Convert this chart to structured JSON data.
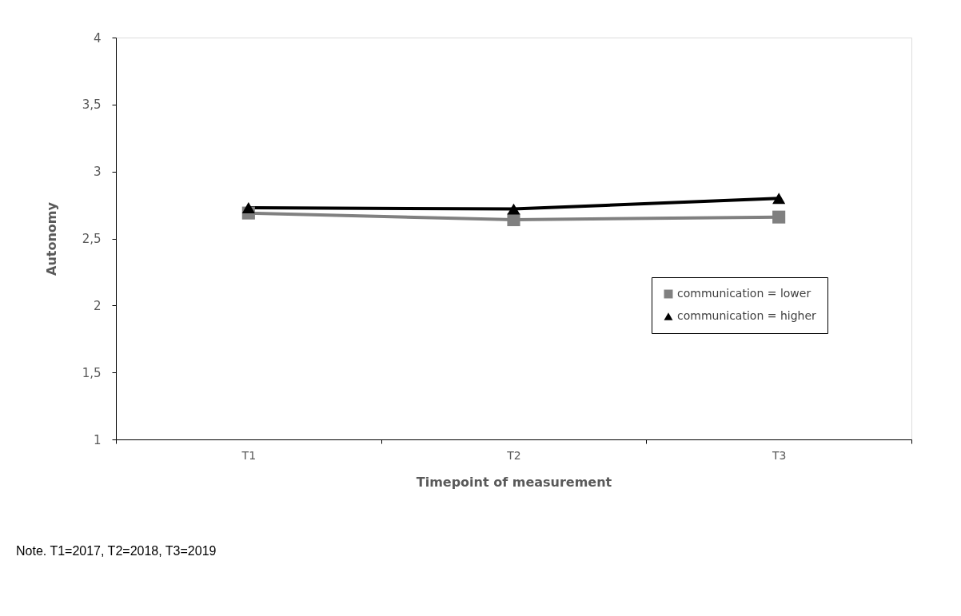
{
  "chart_data": {
    "type": "line",
    "xlabel": "Timepoint of measurement",
    "ylabel": "Autonomy",
    "categories": [
      "T1",
      "T2",
      "T3"
    ],
    "series": [
      {
        "name": "communication = lower",
        "color": "#808080",
        "marker": "square",
        "values": [
          2.69,
          2.64,
          2.66
        ]
      },
      {
        "name": "communication = higher",
        "color": "#000000",
        "marker": "triangle",
        "values": [
          2.73,
          2.72,
          2.8
        ]
      }
    ],
    "ylim": [
      1,
      4
    ],
    "yticks": [
      1,
      {
        "value": 1.5,
        "label": "1,5"
      },
      2,
      {
        "value": 2.5,
        "label": "2,5"
      },
      3,
      {
        "value": 3.5,
        "label": "3,5"
      },
      4
    ],
    "grid": false,
    "legend": "right",
    "line_style": "solid",
    "annotations": [
      "Note. T1=2017, T2=2018, T3=2019"
    ]
  }
}
